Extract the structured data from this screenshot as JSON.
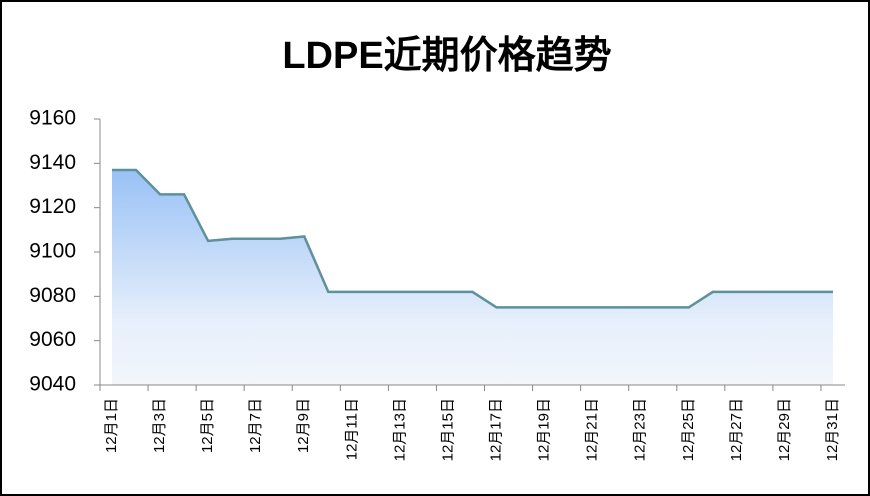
{
  "chart_data": {
    "type": "area",
    "title": "LDPE近期价格趋势",
    "categories": [
      "12月1日",
      null,
      "12月3日",
      null,
      "12月5日",
      null,
      "12月7日",
      null,
      "12月9日",
      null,
      "12月11日",
      null,
      "12月13日",
      null,
      "12月15日",
      null,
      "12月17日",
      null,
      "12月19日",
      null,
      "12月21日",
      null,
      "12月23日",
      null,
      "12月25日",
      null,
      "12月27日",
      null,
      "12月29日",
      null,
      "12月31日"
    ],
    "values": [
      9137,
      9137,
      9126,
      9126,
      9105,
      9106,
      9106,
      9106,
      9107,
      9082,
      9082,
      9082,
      9082,
      9082,
      9082,
      9082,
      9075,
      9075,
      9075,
      9075,
      9075,
      9075,
      9075,
      9075,
      9075,
      9082,
      9082,
      9082,
      9082,
      9082,
      9082
    ],
    "color": "#5e9199",
    "ylim": [
      9040,
      9160
    ],
    "yticks": [
      9040,
      9060,
      9080,
      9100,
      9120,
      9140,
      9160
    ],
    "grid": false
  }
}
